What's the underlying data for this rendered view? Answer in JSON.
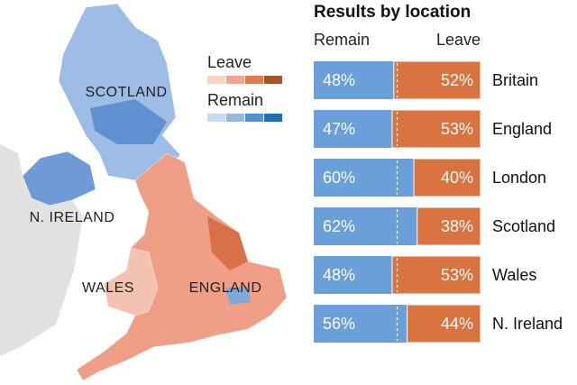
{
  "map": {
    "labels": [
      "SCOTLAND",
      "N. IRELAND",
      "WALES",
      "ENGLAND"
    ],
    "legend": {
      "leave_title": "Leave",
      "leave_colors": [
        "#f7d5c6",
        "#f0a68a",
        "#de7a54",
        "#a8532a"
      ],
      "remain_title": "Remain",
      "remain_colors": [
        "#c8daf1",
        "#93b8e4",
        "#5690d2",
        "#1e6fb4"
      ]
    }
  },
  "chart_data": {
    "type": "bar",
    "title": "Results by location",
    "categories": [
      "Britain",
      "England",
      "London",
      "Scotland",
      "Wales",
      "N. Ireland"
    ],
    "series": [
      {
        "name": "Remain",
        "color": "#6a9fd9",
        "values": [
          48,
          47,
          60,
          62,
          48,
          56
        ],
        "value_labels": [
          "48%",
          "47%",
          "60%",
          "62%",
          "48%",
          "56%"
        ]
      },
      {
        "name": "Leave",
        "color": "#d9733f",
        "values": [
          52,
          53,
          40,
          38,
          53,
          44
        ],
        "value_labels": [
          "52%",
          "53%",
          "40%",
          "38%",
          "53%",
          "44%"
        ]
      }
    ],
    "xlim": [
      0,
      100
    ]
  }
}
